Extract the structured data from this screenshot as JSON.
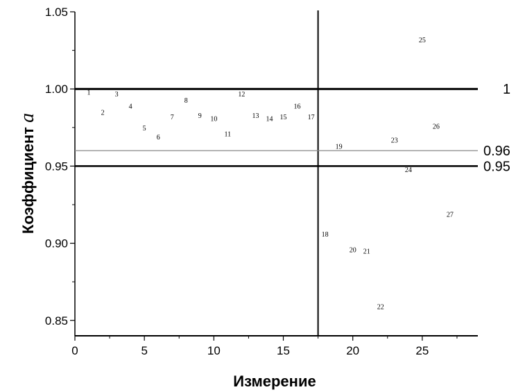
{
  "chart_data": {
    "type": "scatter",
    "title": "",
    "xlabel": "Измерение",
    "ylabel": "Коэффициент",
    "ylabel_symbol": "a",
    "xlim": [
      0,
      29
    ],
    "ylim": [
      0.84,
      1.05
    ],
    "xticks": [
      "0",
      "5",
      "10",
      "15",
      "20",
      "25"
    ],
    "xtick_values": [
      0,
      5,
      10,
      15,
      20,
      25
    ],
    "yticks": [
      "0.85",
      "0.90",
      "0.95",
      "1.00",
      "1.05"
    ],
    "ytick_values": [
      0.85,
      0.9,
      0.95,
      1.0,
      1.05
    ],
    "grid": false,
    "vertical_line_x": 17.5,
    "reference_lines": [
      {
        "y": 1.0,
        "label": "1",
        "style": "thick"
      },
      {
        "y": 0.96,
        "label": "0.96",
        "style": "thin-gray"
      },
      {
        "y": 0.95,
        "label": "0.95",
        "style": "thick"
      }
    ],
    "points": [
      {
        "label": "1",
        "x": 1,
        "y": 0.998
      },
      {
        "label": "2",
        "x": 2,
        "y": 0.985
      },
      {
        "label": "3",
        "x": 3,
        "y": 0.997
      },
      {
        "label": "4",
        "x": 4,
        "y": 0.989
      },
      {
        "label": "5",
        "x": 5,
        "y": 0.975
      },
      {
        "label": "6",
        "x": 6,
        "y": 0.969
      },
      {
        "label": "7",
        "x": 7,
        "y": 0.982
      },
      {
        "label": "8",
        "x": 8,
        "y": 0.993
      },
      {
        "label": "9",
        "x": 9,
        "y": 0.983
      },
      {
        "label": "10",
        "x": 10,
        "y": 0.981
      },
      {
        "label": "11",
        "x": 11,
        "y": 0.971
      },
      {
        "label": "12",
        "x": 12,
        "y": 0.997
      },
      {
        "label": "13",
        "x": 13,
        "y": 0.983
      },
      {
        "label": "14",
        "x": 14,
        "y": 0.981
      },
      {
        "label": "15",
        "x": 15,
        "y": 0.982
      },
      {
        "label": "16",
        "x": 16,
        "y": 0.989
      },
      {
        "label": "17",
        "x": 17,
        "y": 0.982
      },
      {
        "label": "18",
        "x": 18,
        "y": 0.906
      },
      {
        "label": "19",
        "x": 19,
        "y": 0.963
      },
      {
        "label": "20",
        "x": 20,
        "y": 0.896
      },
      {
        "label": "21",
        "x": 21,
        "y": 0.895
      },
      {
        "label": "22",
        "x": 22,
        "y": 0.859
      },
      {
        "label": "23",
        "x": 23,
        "y": 0.967
      },
      {
        "label": "24",
        "x": 24,
        "y": 0.948
      },
      {
        "label": "25",
        "x": 25,
        "y": 1.032
      },
      {
        "label": "26",
        "x": 26,
        "y": 0.976
      },
      {
        "label": "27",
        "x": 27,
        "y": 0.919
      }
    ]
  }
}
